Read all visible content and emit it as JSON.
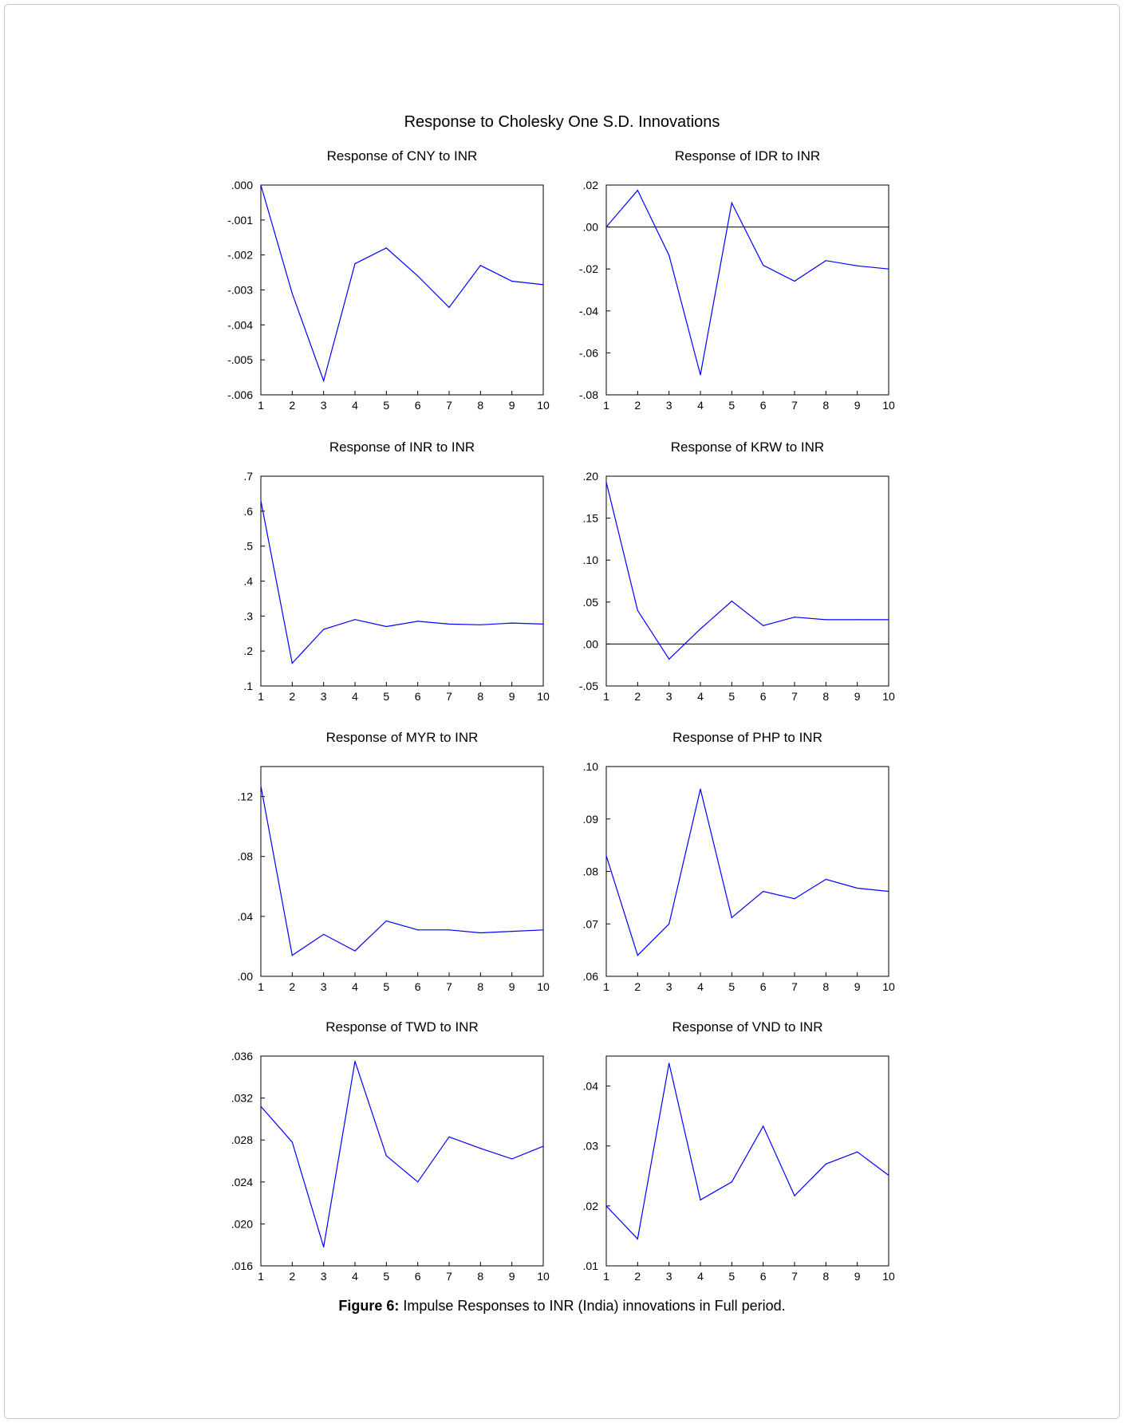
{
  "title": "Response to Cholesky One S.D. Innovations",
  "caption": {
    "label": "Figure 6:",
    "text": " Impulse Responses to INR (India) innovations in Full period."
  },
  "colors": {
    "line": "#0000ff",
    "axis": "#000000",
    "zero_line": "#000000"
  },
  "chart_data": [
    {
      "type": "line",
      "title": "Response of CNY to INR",
      "x": [
        1,
        2,
        3,
        4,
        5,
        6,
        7,
        8,
        9,
        10
      ],
      "values": [
        0.0,
        -0.0031,
        -0.0056,
        -0.00225,
        -0.0018,
        -0.0026,
        -0.0035,
        -0.0023,
        -0.00275,
        -0.00285
      ],
      "ylim": [
        -0.006,
        0.0
      ],
      "yticks": [
        0.0,
        -0.001,
        -0.002,
        -0.003,
        -0.004,
        -0.005,
        -0.006
      ],
      "ytick_labels": [
        ".000",
        "-.001",
        "-.002",
        "-.003",
        "-.004",
        "-.005",
        "-.006"
      ],
      "zero_line": false
    },
    {
      "type": "line",
      "title": "Response of IDR to INR",
      "x": [
        1,
        2,
        3,
        4,
        5,
        6,
        7,
        8,
        9,
        10
      ],
      "values": [
        0.0,
        0.0175,
        -0.0135,
        -0.0705,
        0.0115,
        -0.0182,
        -0.0258,
        -0.016,
        -0.0185,
        -0.02
      ],
      "ylim": [
        -0.08,
        0.02
      ],
      "yticks": [
        0.02,
        0.0,
        -0.02,
        -0.04,
        -0.06,
        -0.08
      ],
      "ytick_labels": [
        ".02",
        ".00",
        "-.02",
        "-.04",
        "-.06",
        "-.08"
      ],
      "zero_line": true
    },
    {
      "type": "line",
      "title": "Response of INR to INR",
      "x": [
        1,
        2,
        3,
        4,
        5,
        6,
        7,
        8,
        9,
        10
      ],
      "values": [
        0.63,
        0.165,
        0.262,
        0.29,
        0.27,
        0.285,
        0.277,
        0.275,
        0.28,
        0.277
      ],
      "ylim": [
        0.1,
        0.7
      ],
      "yticks": [
        0.7,
        0.6,
        0.5,
        0.4,
        0.3,
        0.2,
        0.1
      ],
      "ytick_labels": [
        ".7",
        ".6",
        ".5",
        ".4",
        ".3",
        ".2",
        ".1"
      ],
      "zero_line": false
    },
    {
      "type": "line",
      "title": "Response of KRW to INR",
      "x": [
        1,
        2,
        3,
        4,
        5,
        6,
        7,
        8,
        9,
        10
      ],
      "values": [
        0.193,
        0.04,
        -0.018,
        0.018,
        0.051,
        0.022,
        0.032,
        0.029,
        0.029,
        0.029
      ],
      "ylim": [
        -0.05,
        0.2
      ],
      "yticks": [
        0.2,
        0.15,
        0.1,
        0.05,
        0.0,
        -0.05
      ],
      "ytick_labels": [
        ".20",
        ".15",
        ".10",
        ".05",
        ".00",
        "-.05"
      ],
      "zero_line": true
    },
    {
      "type": "line",
      "title": "Response of MYR to INR",
      "x": [
        1,
        2,
        3,
        4,
        5,
        6,
        7,
        8,
        9,
        10
      ],
      "values": [
        0.127,
        0.014,
        0.028,
        0.017,
        0.037,
        0.031,
        0.031,
        0.029,
        0.03,
        0.031
      ],
      "ylim": [
        0.0,
        0.14
      ],
      "yticks": [
        0.12,
        0.08,
        0.04,
        0.0
      ],
      "ytick_labels": [
        ".12",
        ".08",
        ".04",
        ".00"
      ],
      "zero_line": false
    },
    {
      "type": "line",
      "title": "Response of PHP to INR",
      "x": [
        1,
        2,
        3,
        4,
        5,
        6,
        7,
        8,
        9,
        10
      ],
      "values": [
        0.083,
        0.064,
        0.07,
        0.0957,
        0.0712,
        0.0762,
        0.0748,
        0.0785,
        0.0768,
        0.0762
      ],
      "ylim": [
        0.06,
        0.1
      ],
      "yticks": [
        0.1,
        0.09,
        0.08,
        0.07,
        0.06
      ],
      "ytick_labels": [
        ".10",
        ".09",
        ".08",
        ".07",
        ".06"
      ],
      "zero_line": false
    },
    {
      "type": "line",
      "title": "Response of TWD to INR",
      "x": [
        1,
        2,
        3,
        4,
        5,
        6,
        7,
        8,
        9,
        10
      ],
      "values": [
        0.0312,
        0.0278,
        0.0178,
        0.0355,
        0.0265,
        0.024,
        0.0283,
        0.0272,
        0.0262,
        0.0274
      ],
      "ylim": [
        0.016,
        0.036
      ],
      "yticks": [
        0.036,
        0.032,
        0.028,
        0.024,
        0.02,
        0.016
      ],
      "ytick_labels": [
        ".036",
        ".032",
        ".028",
        ".024",
        ".020",
        ".016"
      ],
      "zero_line": false
    },
    {
      "type": "line",
      "title": "Response of VND to INR",
      "x": [
        1,
        2,
        3,
        4,
        5,
        6,
        7,
        8,
        9,
        10
      ],
      "values": [
        0.02,
        0.0145,
        0.0438,
        0.021,
        0.024,
        0.0333,
        0.0217,
        0.027,
        0.029,
        0.0251
      ],
      "ylim": [
        0.01,
        0.045
      ],
      "yticks": [
        0.04,
        0.03,
        0.02,
        0.01
      ],
      "ytick_labels": [
        ".04",
        ".03",
        ".02",
        ".01"
      ],
      "zero_line": false
    }
  ]
}
